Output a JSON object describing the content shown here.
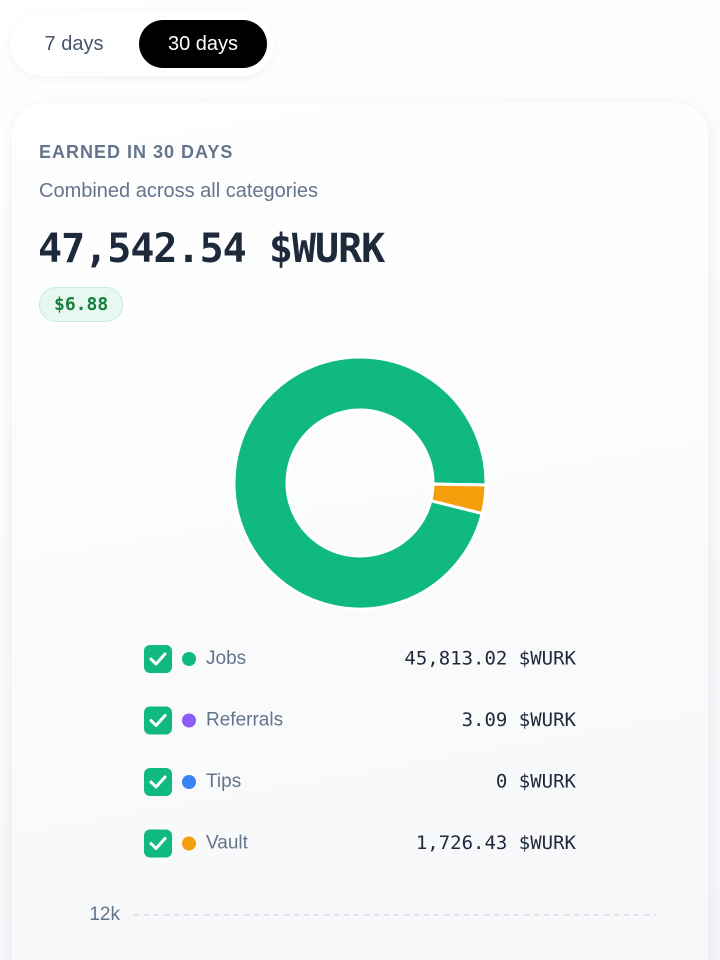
{
  "tabs": [
    "7 days",
    "30 days"
  ],
  "card": {
    "title": "EARNED IN 30 DAYS",
    "subtitle": "Combined across all categories",
    "total": "47,542.54 $WURK",
    "usd": "$6.88"
  },
  "chart_data": [
    {
      "type": "donut",
      "categories": [
        "Jobs",
        "Referrals",
        "Tips",
        "Vault"
      ],
      "values": [
        45813.02,
        3.09,
        0,
        1726.43
      ],
      "value_labels": [
        "45,813.02 $WURK",
        "3.09 $WURK",
        "0 $WURK",
        "1,726.43 $WURK"
      ],
      "colors": [
        "#10b981",
        "#8b5cf6",
        "#3b82f6",
        "#f59e0b"
      ]
    },
    {
      "type": "line",
      "yticks": [
        {
          "value": 12000,
          "label": "12k"
        }
      ],
      "grid": true
    }
  ]
}
